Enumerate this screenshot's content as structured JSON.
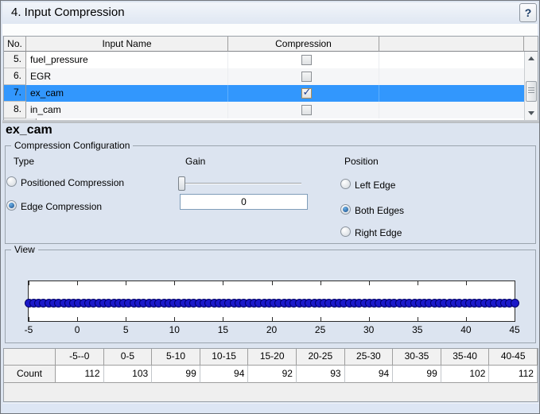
{
  "window": {
    "title": "4. Input Compression",
    "help_label": "?"
  },
  "input_table": {
    "columns": [
      "No.",
      "Input Name",
      "Compression",
      ""
    ],
    "rows": [
      {
        "no": "5.",
        "name": "fuel_pressure",
        "compression": false,
        "selected": false
      },
      {
        "no": "6.",
        "name": "EGR",
        "compression": false,
        "selected": false
      },
      {
        "no": "7.",
        "name": "ex_cam",
        "compression": true,
        "selected": true
      },
      {
        "no": "8.",
        "name": "in_cam",
        "compression": false,
        "selected": false
      }
    ]
  },
  "detail": {
    "heading": "ex_cam",
    "config": {
      "legend": "Compression Configuration",
      "type_label": "Type",
      "type_options": [
        {
          "label": "Positioned Compression",
          "selected": false
        },
        {
          "label": "Edge Compression",
          "selected": true
        }
      ],
      "gain_label": "Gain",
      "gain_value": "0",
      "position_label": "Position",
      "position_options": [
        {
          "label": "Left Edge",
          "selected": false
        },
        {
          "label": "Both Edges",
          "selected": true
        },
        {
          "label": "Right Edge",
          "selected": false
        }
      ]
    }
  },
  "view": {
    "legend": "View",
    "axis_ticks": [
      "-5",
      "0",
      "5",
      "10",
      "15",
      "20",
      "25",
      "30",
      "35",
      "40",
      "45"
    ]
  },
  "count_table": {
    "row_label": "Count",
    "bins": [
      "-5--0",
      "0-5",
      "5-10",
      "10-15",
      "15-20",
      "20-25",
      "25-30",
      "30-35",
      "35-40",
      "40-45"
    ],
    "counts": [
      "112",
      "103",
      "99",
      "94",
      "92",
      "93",
      "94",
      "99",
      "102",
      "112"
    ]
  },
  "chart_data": {
    "type": "scatter",
    "title": "",
    "xlabel": "",
    "ylabel": "",
    "x_ticks": [
      -5,
      0,
      5,
      10,
      15,
      20,
      25,
      30,
      35,
      40,
      45
    ],
    "xlim": [
      -5,
      45
    ],
    "description": "dense horizontal band of data point markers spanning x = -5 to 45 at constant y",
    "bins": [
      "-5--0",
      "0-5",
      "5-10",
      "10-15",
      "15-20",
      "20-25",
      "25-30",
      "30-35",
      "35-40",
      "40-45"
    ],
    "counts": [
      112,
      103,
      99,
      94,
      92,
      93,
      94,
      99,
      102,
      112
    ]
  },
  "colors": {
    "selection": "#3297fd",
    "marker": "#1a18c9",
    "panel": "#dce4f0"
  }
}
